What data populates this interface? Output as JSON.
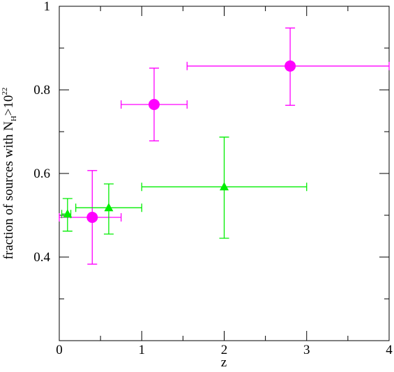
{
  "chart_data": {
    "type": "scatter",
    "xlabel": "z",
    "ylabel": {
      "main": "fraction of sources with N",
      "sub": "H",
      "rest": ">10",
      "sup": "22"
    },
    "xlim": [
      0,
      4
    ],
    "xticks": [
      0,
      1,
      2,
      3,
      4
    ],
    "xminorticks": [
      0.5,
      1.5,
      2.5,
      3.5
    ],
    "ylim": [
      0.2,
      1
    ],
    "yticks": [
      0.4,
      0.6,
      0.8,
      1
    ],
    "yminorticks": [
      0.3,
      0.5,
      0.7,
      0.9
    ],
    "series": [
      {
        "marker": "circle",
        "color": "#ff00ff",
        "x": [
          0.4,
          1.15,
          2.8
        ],
        "values": [
          0.495,
          0.765,
          0.857
        ],
        "xmin": [
          0.0,
          0.75,
          1.55
        ],
        "xmax": [
          0.75,
          1.55,
          4.0
        ],
        "ymin": [
          0.383,
          0.678,
          0.763
        ],
        "ymax": [
          0.607,
          0.852,
          0.948
        ]
      },
      {
        "marker": "triangle",
        "color": "#00ee00",
        "x": [
          0.1,
          0.6,
          2.0
        ],
        "values": [
          0.503,
          0.518,
          0.568
        ],
        "xmin": [
          0.03,
          0.2,
          1.0
        ],
        "xmax": [
          0.14,
          1.0,
          3.0
        ],
        "ymin": [
          0.462,
          0.455,
          0.445
        ],
        "ymax": [
          0.54,
          0.575,
          0.687
        ]
      }
    ]
  }
}
